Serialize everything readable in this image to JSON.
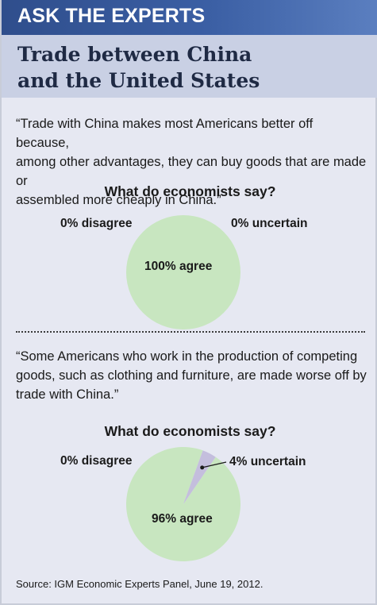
{
  "header": {
    "banner": "ASK THE EXPERTS",
    "title_line1": "Trade between China",
    "title_line2": "and the United States"
  },
  "colors": {
    "banner": "#3b5fa4",
    "agree": "#c8e6c0",
    "uncertain": "#c4bedd",
    "disagree": "#e0c0c0",
    "panel": "#e6e8f2"
  },
  "questions": [
    {
      "quote_lines": [
        "“Trade with China makes most Americans better off because,",
        "among other advantages, they can buy goods that are made or",
        "assembled more cheaply in China.”"
      ],
      "heading": "What do economists say?",
      "disagree_label": "0% disagree",
      "uncertain_label": "0% uncertain",
      "agree_label": "100% agree"
    },
    {
      "quote_lines": [
        "“Some Americans who work in the production of competing",
        "goods, such as clothing and furniture, are made worse off by",
        "trade with China.”"
      ],
      "heading": "What do economists say?",
      "disagree_label": "0% disagree",
      "uncertain_label": "4% uncertain",
      "agree_label": "96% agree"
    }
  ],
  "chart_data": [
    {
      "type": "pie",
      "title": "What do economists say?",
      "categories": [
        "agree",
        "uncertain",
        "disagree"
      ],
      "values": [
        100,
        0,
        0
      ],
      "labels": [
        "100% agree",
        "0% uncertain",
        "0% disagree"
      ]
    },
    {
      "type": "pie",
      "title": "What do economists say?",
      "categories": [
        "agree",
        "uncertain",
        "disagree"
      ],
      "values": [
        96,
        4,
        0
      ],
      "labels": [
        "96% agree",
        "4% uncertain",
        "0% disagree"
      ]
    }
  ],
  "source": "Source: IGM Economic Experts Panel, June 19, 2012."
}
